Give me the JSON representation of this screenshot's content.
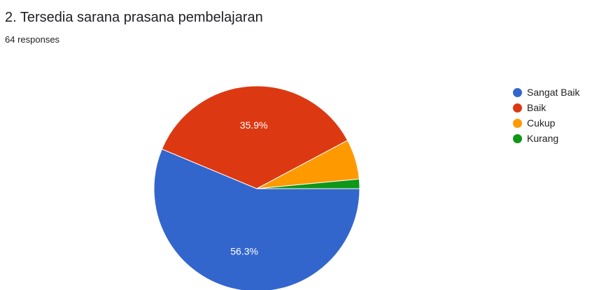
{
  "header": {
    "title": "2. Tersedia sarana prasana pembelajaran",
    "responses": "64 responses"
  },
  "chart_data": {
    "type": "pie",
    "categories": [
      "Sangat Baik",
      "Baik",
      "Cukup",
      "Kurang"
    ],
    "values": [
      56.3,
      35.9,
      6.3,
      1.5
    ],
    "colors": [
      "#3366cc",
      "#dc3912",
      "#ff9900",
      "#109618"
    ],
    "data_labels": [
      "56.3%",
      "35.9%",
      "",
      ""
    ],
    "legend_position": "right"
  }
}
